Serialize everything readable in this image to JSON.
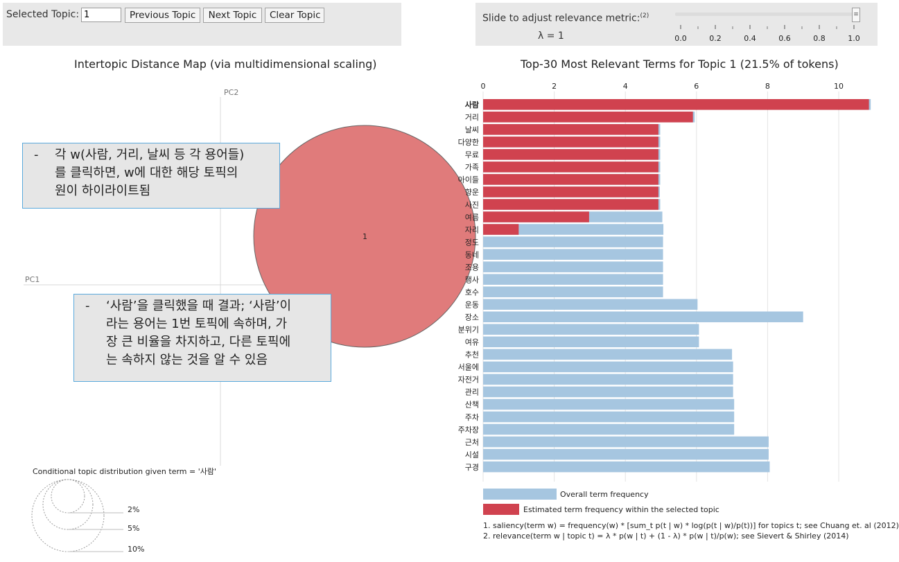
{
  "controls": {
    "selected_topic_label": "Selected Topic:",
    "selected_topic_value": "1",
    "previous_label": "Previous Topic",
    "next_label": "Next Topic",
    "clear_label": "Clear Topic"
  },
  "relevance": {
    "label": "Slide to adjust relevance metric:",
    "footnote_mark": "(2)",
    "lambda_text": "λ = 1",
    "lambda_value": 1.0,
    "slider_ticks": [
      "0.0",
      "0.2",
      "0.4",
      "0.6",
      "0.8",
      "1.0"
    ],
    "thumb_glyph": "≡"
  },
  "map": {
    "title": "Intertopic Distance Map (via multidimensional scaling)",
    "pc1_label": "PC1",
    "pc2_label": "PC2",
    "topic_label": "1",
    "topic_color": "#e07b7b",
    "conditional_label": "Conditional topic distribution given term = '사람'",
    "size_legend": [
      "2%",
      "5%",
      "10%"
    ]
  },
  "callouts": {
    "top": [
      "각 w(사람, 거리, 날씨 등 각 용어들)",
      "를 클릭하면, w에 대한 해당 토픽의",
      "원이 하이라이트됨"
    ],
    "bottom": [
      "‘사람’을 클릭했을 때 결과; ‘사람’이",
      "라는 용어는 1번 토픽에 속하며, 가",
      "장 큰 비율을 차지하고, 다른 토픽에",
      "는 속하지 않는 것을 알 수 있음"
    ],
    "dash": "-"
  },
  "chart_data": {
    "type": "bar",
    "title": "Top-30 Most Relevant Terms for Topic 1 (21.5% of tokens)",
    "x_ticks": [
      "0",
      "2",
      "4",
      "6",
      "8",
      "10"
    ],
    "xlim": [
      0,
      11
    ],
    "categories": [
      "사람",
      "거리",
      "날씨",
      "다양한",
      "무료",
      "가족",
      "아이들",
      "향운",
      "사진",
      "여름",
      "자리",
      "정도",
      "동네",
      "조용",
      "행사",
      "호수",
      "운동",
      "장소",
      "분위기",
      "여유",
      "추천",
      "서울에",
      "자전거",
      "관리",
      "산책",
      "주차",
      "주차장",
      "근처",
      "시설",
      "구경"
    ],
    "series": [
      {
        "name": "Overall term frequency",
        "color": "#a6c6e0",
        "values": [
          10.9,
          5.95,
          4.98,
          4.98,
          4.98,
          4.98,
          4.98,
          4.97,
          4.98,
          5.04,
          5.07,
          5.06,
          5.06,
          5.06,
          5.06,
          5.06,
          6.03,
          9.0,
          6.07,
          6.07,
          7.0,
          7.03,
          7.03,
          7.03,
          7.06,
          7.06,
          7.06,
          8.03,
          8.03,
          8.06
        ]
      },
      {
        "name": "Estimated term frequency within the selected topic",
        "color": "#d0424f",
        "values": [
          10.85,
          5.9,
          4.93,
          4.93,
          4.93,
          4.93,
          4.93,
          4.93,
          4.93,
          2.98,
          1.0,
          0,
          0,
          0,
          0,
          0,
          0,
          0,
          0,
          0,
          0,
          0,
          0,
          0,
          0,
          0,
          0,
          0,
          0,
          0
        ]
      }
    ],
    "legend": [
      "Overall term frequency",
      "Estimated term frequency within the selected topic"
    ]
  },
  "footnotes": [
    "1. saliency(term w) = frequency(w) * [sum_t p(t | w) * log(p(t | w)/p(t))] for topics t; see Chuang et. al (2012)",
    "2. relevance(term w | topic t) = λ * p(w | t) + (1 - λ) * p(w | t)/p(w); see Sievert & Shirley (2014)"
  ]
}
